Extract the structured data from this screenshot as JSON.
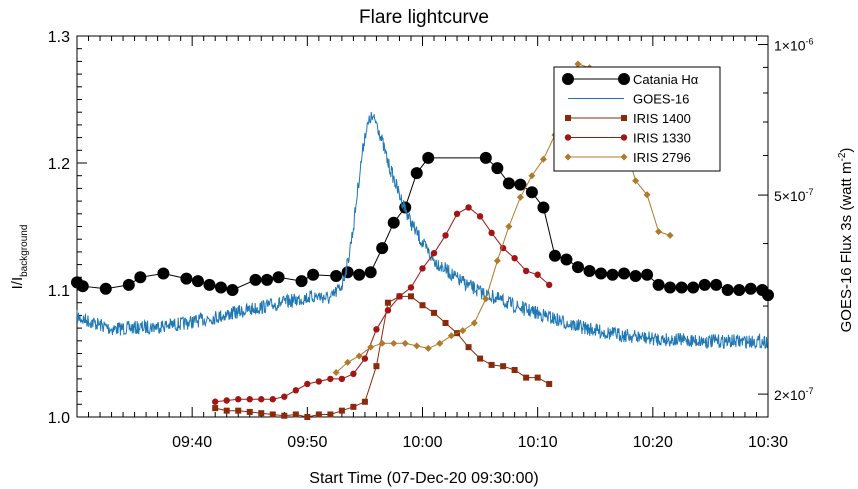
{
  "chart_data": {
    "type": "line",
    "title": "Flare lightcurve",
    "xlabel": "Start Time (07-Dec-20 09:30:00)",
    "ylabel_main": "I/I",
    "ylabel_sub": "background",
    "y2label_main": "GOES-16 Flux 3s (watt m",
    "y2label_sup": "-2",
    "y2label_end": ")",
    "x_unit": "minutes after 09:30:00",
    "xlim": [
      0,
      60
    ],
    "ylim": [
      1.0,
      1.3
    ],
    "y2lim": [
      1.8e-07,
      1.04e-06
    ],
    "y2_scale": "log",
    "grid": false,
    "legend_position": "top-right",
    "x_ticks": [
      {
        "value": 10,
        "label": "09:40"
      },
      {
        "value": 20,
        "label": "09:50"
      },
      {
        "value": 30,
        "label": "10:00"
      },
      {
        "value": 40,
        "label": "10:10"
      },
      {
        "value": 50,
        "label": "10:20"
      },
      {
        "value": 60,
        "label": "10:30"
      }
    ],
    "y_ticks": [
      {
        "value": 1.0,
        "label": "1.0"
      },
      {
        "value": 1.1,
        "label": "1.1"
      },
      {
        "value": 1.2,
        "label": "1.2"
      },
      {
        "value": 1.3,
        "label": "1.3"
      }
    ],
    "y2_ticks": [
      {
        "value": 2e-07,
        "mant": "2",
        "exp": "-7"
      },
      {
        "value": 5e-07,
        "mant": "5",
        "exp": "-7"
      },
      {
        "value": 1e-06,
        "mant": "1",
        "exp": "-6"
      }
    ],
    "series": [
      {
        "name": "Catania Hα",
        "axis": "left",
        "color": "#000000",
        "marker": "circle-large",
        "x": [
          -0.8,
          0.5,
          2.5,
          4.5,
          5.5,
          7.5,
          9.5,
          10.5,
          11.5,
          12.5,
          13.5,
          15.5,
          16.5,
          17.5,
          19.5,
          20.5,
          22.5,
          23.5,
          24.5,
          25.5,
          26.5,
          27.5,
          28.5,
          29.5,
          30.5,
          35.5,
          36.5,
          37.5,
          38.5,
          39.5,
          40.5,
          41.5,
          42.5,
          43.5,
          44.5,
          45.5,
          46.5,
          47.5,
          48.5,
          49.5,
          50.5,
          51.5,
          52.5,
          53.5,
          54.5,
          55.5,
          56.5,
          57.5,
          58.5,
          59.5,
          60.5
        ],
        "y": [
          1.106,
          1.103,
          1.101,
          1.104,
          1.11,
          1.113,
          1.109,
          1.107,
          1.104,
          1.102,
          1.1,
          1.108,
          1.108,
          1.11,
          1.107,
          1.112,
          1.111,
          1.114,
          1.112,
          1.114,
          1.133,
          1.153,
          1.165,
          1.192,
          1.204,
          1.204,
          1.196,
          1.184,
          1.183,
          1.177,
          1.165,
          1.127,
          1.124,
          1.118,
          1.115,
          1.113,
          1.112,
          1.113,
          1.111,
          1.112,
          1.104,
          1.102,
          1.102,
          1.102,
          1.104,
          1.104,
          1.1,
          1.1,
          1.101,
          1.1,
          1.096
        ]
      },
      {
        "name": "GOES-16",
        "axis": "right",
        "color": "#1f78b4",
        "marker": "none",
        "x": [
          0,
          3,
          6,
          9,
          12,
          15,
          18,
          20,
          21,
          22,
          23,
          23.5,
          24,
          24.5,
          25,
          25.5,
          26,
          26.5,
          27,
          28,
          29,
          30,
          31,
          33,
          35,
          38,
          40,
          43,
          46,
          50,
          55,
          60
        ],
        "y": [
          2.85e-07,
          2.7e-07,
          2.72e-07,
          2.76e-07,
          2.85e-07,
          2.95e-07,
          3.05e-07,
          3.12e-07,
          3.14e-07,
          3.1e-07,
          3.3e-07,
          3.65e-07,
          4.3e-07,
          5.4e-07,
          6.6e-07,
          7.15e-07,
          7e-07,
          6.4e-07,
          5.8e-07,
          5e-07,
          4.4e-07,
          4e-07,
          3.7e-07,
          3.4e-07,
          3.2e-07,
          3e-07,
          2.9e-07,
          2.75e-07,
          2.65e-07,
          2.58e-07,
          2.55e-07,
          2.55e-07
        ]
      },
      {
        "name": "IRIS 1400",
        "axis": "left",
        "color": "#8b2a0a",
        "marker": "square",
        "x": [
          12,
          13,
          14,
          15,
          16,
          17,
          18,
          19,
          20,
          21,
          22,
          23,
          24,
          25,
          26,
          27,
          28,
          29,
          30,
          31,
          32,
          33,
          34,
          35,
          36,
          37,
          38,
          39,
          40,
          41
        ],
        "y": [
          1.007,
          1.005,
          1.005,
          1.004,
          1.003,
          1.002,
          1.001,
          1.002,
          1.0,
          1.002,
          1.002,
          1.005,
          1.008,
          1.012,
          1.04,
          1.09,
          1.095,
          1.095,
          1.088,
          1.082,
          1.074,
          1.066,
          1.055,
          1.046,
          1.041,
          1.04,
          1.037,
          1.031,
          1.031,
          1.026
        ]
      },
      {
        "name": "IRIS 1330",
        "axis": "left",
        "color": "#a31515",
        "marker": "circle",
        "x": [
          12,
          13,
          14,
          15,
          16,
          17,
          18,
          19,
          20,
          21,
          22,
          23,
          24,
          25,
          26,
          27,
          28,
          29,
          30,
          31,
          32,
          33,
          34,
          35,
          36,
          37,
          38,
          39,
          40,
          41
        ],
        "y": [
          1.012,
          1.013,
          1.014,
          1.014,
          1.014,
          1.014,
          1.016,
          1.021,
          1.026,
          1.028,
          1.03,
          1.03,
          1.034,
          1.046,
          1.069,
          1.084,
          1.095,
          1.102,
          1.117,
          1.129,
          1.143,
          1.16,
          1.165,
          1.158,
          1.145,
          1.133,
          1.125,
          1.115,
          1.112,
          1.104
        ]
      },
      {
        "name": "IRIS 2796",
        "axis": "left",
        "color": "#b07a2a",
        "marker": "diamond",
        "x": [
          22.5,
          23.5,
          24.5,
          25.5,
          26.5,
          27.5,
          28.5,
          29.5,
          30.5,
          31.5,
          32.5,
          33.5,
          34.5,
          35.5,
          36.5,
          37.5,
          38.5,
          39.5,
          40.5,
          41.5,
          42.5,
          43.5,
          44.5,
          45.5,
          46.5,
          47.5,
          48.5,
          49.5,
          50.5,
          51.5
        ],
        "y": [
          1.035,
          1.043,
          1.048,
          1.055,
          1.058,
          1.058,
          1.058,
          1.056,
          1.054,
          1.058,
          1.064,
          1.068,
          1.074,
          1.093,
          1.123,
          1.15,
          1.173,
          1.19,
          1.203,
          1.222,
          1.251,
          1.278,
          1.275,
          1.267,
          1.257,
          1.217,
          1.186,
          1.175,
          1.146,
          1.143
        ]
      }
    ]
  }
}
